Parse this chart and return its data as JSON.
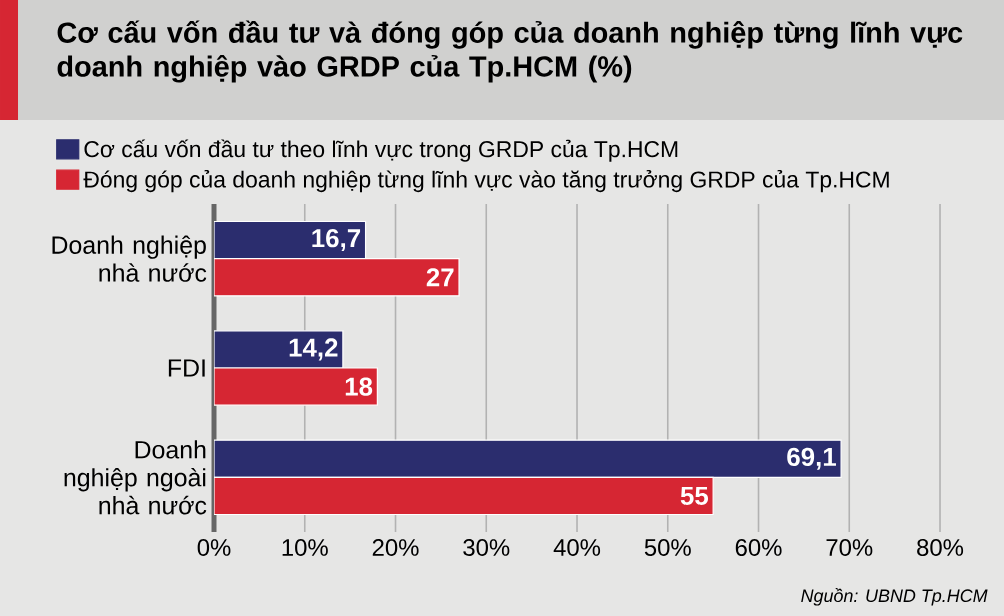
{
  "chart_data": {
    "type": "bar",
    "orientation": "horizontal",
    "title": "Cơ cấu vốn đầu tư và đóng góp của doanh nghiệp từng lĩnh vực doanh nghiệp vào GRDP của Tp.HCM (%)",
    "categories": [
      "Doanh nghiệp nhà nước",
      "FDI",
      "Doanh nghiệp ngoài nhà nước"
    ],
    "series": [
      {
        "name": "Cơ cấu vốn đầu tư theo lĩnh vực trong GRDP của Tp.HCM",
        "color": "#2b2d6e",
        "values": [
          16.7,
          14.2,
          69.1
        ],
        "value_labels": [
          "16,7",
          "14,2",
          "69,1"
        ]
      },
      {
        "name": "Đóng góp của doanh nghiệp từng lĩnh vực vào tăng trưởng GRDP của Tp.HCM",
        "color": "#d62633",
        "values": [
          27,
          18,
          55
        ],
        "value_labels": [
          "27",
          "18",
          "55"
        ]
      }
    ],
    "xlim": [
      0,
      80
    ],
    "xticks": [
      {
        "value": 0,
        "label": "0%"
      },
      {
        "value": 10,
        "label": "10%"
      },
      {
        "value": 20,
        "label": "20%"
      },
      {
        "value": 30,
        "label": "30%"
      },
      {
        "value": 40,
        "label": "40%"
      },
      {
        "value": 50,
        "label": "50%"
      },
      {
        "value": 60,
        "label": "60%"
      },
      {
        "value": 70,
        "label": "70%"
      },
      {
        "value": 80,
        "label": "80%"
      }
    ],
    "grid": "x",
    "legend": "top",
    "annotations": [
      "Nguồn: UBND Tp.HCM"
    ]
  }
}
